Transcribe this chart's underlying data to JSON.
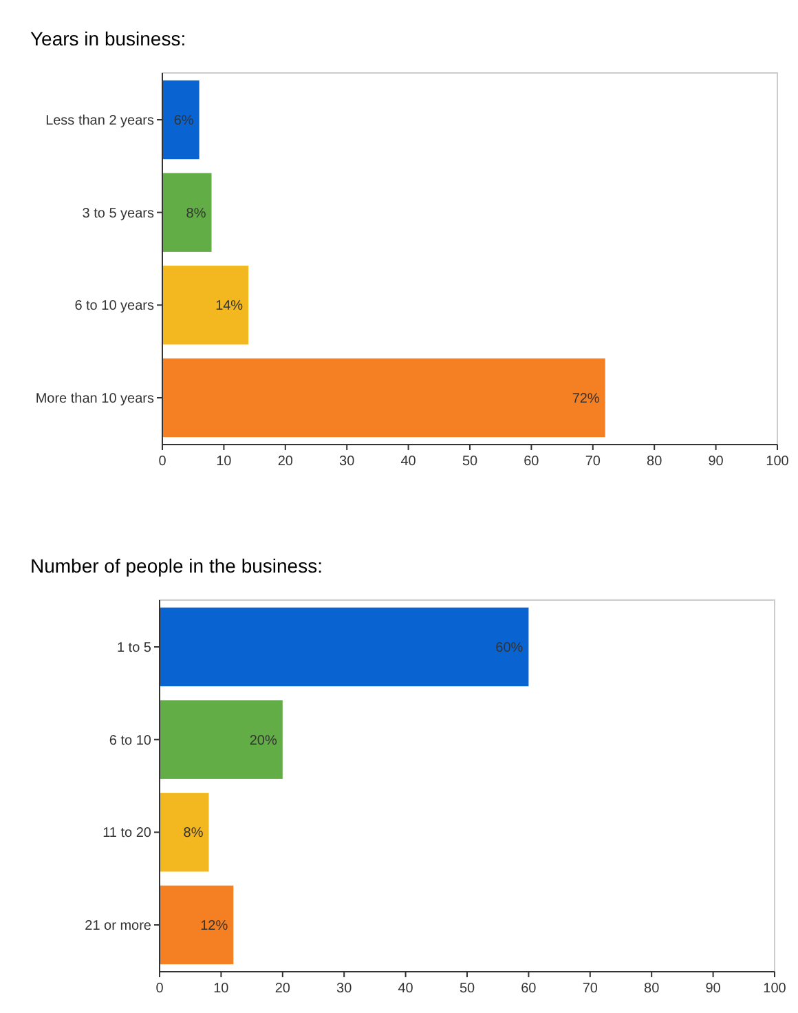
{
  "chart_data": [
    {
      "type": "bar",
      "orientation": "horizontal",
      "title": "Years in business:",
      "categories": [
        "Less than 2 years",
        "3 to 5 years",
        "6 to 10 years",
        "More than 10 years"
      ],
      "values": [
        6,
        8,
        14,
        72
      ],
      "colors": [
        "#0964d2",
        "#63ad47",
        "#f3b81f",
        "#f58024"
      ],
      "value_labels": [
        "6%",
        "8%",
        "14%",
        "72%"
      ],
      "xlim": [
        0,
        100
      ],
      "xticks": [
        0,
        10,
        20,
        30,
        40,
        50,
        60,
        70,
        80,
        90,
        100
      ],
      "grid": false
    },
    {
      "type": "bar",
      "orientation": "horizontal",
      "title": "Number of people in the business:",
      "categories": [
        "1 to 5",
        "6 to 10",
        "11 to 20",
        "21 or more"
      ],
      "values": [
        60,
        20,
        8,
        12
      ],
      "colors": [
        "#0964d2",
        "#63ad47",
        "#f3b81f",
        "#f58024"
      ],
      "value_labels": [
        "60%",
        "20%",
        "8%",
        "12%"
      ],
      "xlim": [
        0,
        100
      ],
      "xticks": [
        0,
        10,
        20,
        30,
        40,
        50,
        60,
        70,
        80,
        90,
        100
      ],
      "grid": false
    }
  ]
}
